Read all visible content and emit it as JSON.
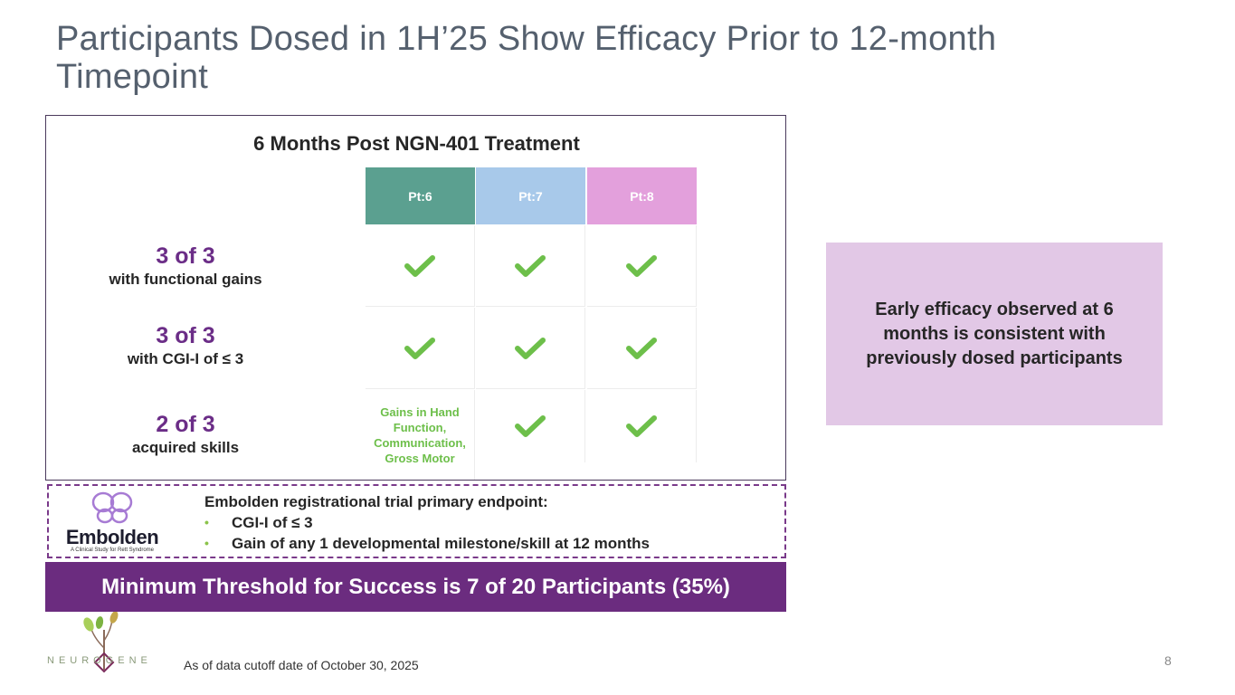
{
  "title": "Participants Dosed in 1H’25 Show Efficacy Prior to 12-month Timepoint",
  "panel": {
    "title": "6 Months Post NGN-401 Treatment",
    "headers": [
      {
        "label": "Pt:6",
        "color": "#5ba090"
      },
      {
        "label": "Pt:7",
        "color": "#a8c9ea"
      },
      {
        "label": "Pt:8",
        "color": "#e3a0dc"
      }
    ],
    "rows": [
      {
        "big": "3 of 3",
        "small": "with functional gains"
      },
      {
        "big": "3 of 3",
        "small": "with CGI-I of ≤ 3"
      },
      {
        "big": "2 of 3",
        "small": "acquired skills"
      }
    ],
    "gains_text": "Gains in Hand Function, Communication, Gross Motor"
  },
  "endpoint": {
    "logo_name": "Embolden",
    "logo_tagline": "A Clinical Study for Rett Syndrome",
    "heading": "Embolden registrational trial primary endpoint:",
    "bullets": [
      "CGI-I of ≤ 3",
      "Gain of any 1 developmental milestone/skill at 12 months"
    ]
  },
  "threshold": "Minimum Threshold for Success is 7 of 20 Participants (35%)",
  "callout": "Early efficacy observed at 6 months is consistent with previously dosed participants",
  "company": "NEUROGENE",
  "footnote": "As of data cutoff date of October 30, 2025",
  "page_number": "8",
  "colors": {
    "accent": "#6b2c7f",
    "check": "#6dbf4a",
    "callout_bg": "#e2c8e6"
  }
}
